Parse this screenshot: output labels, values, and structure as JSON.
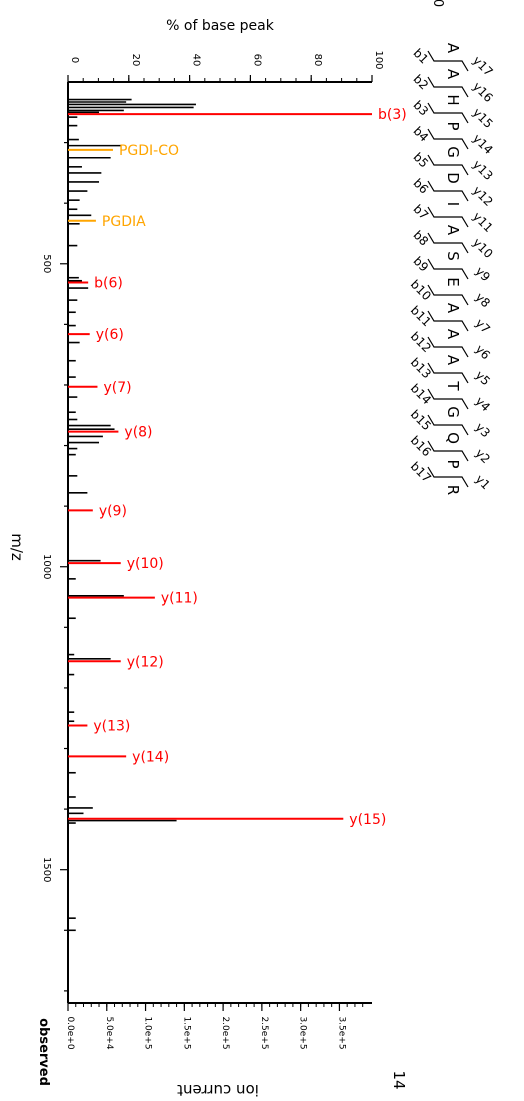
{
  "chart_data": {
    "type": "bar",
    "orientation": "rotated-spectrum",
    "top_axis_label": "% of base peak",
    "top_axis_ticks": [
      "0",
      "20",
      "40",
      "60",
      "80",
      "100"
    ],
    "mz_axis_label": "m/z",
    "mz_ticks": [
      "500",
      "1000",
      "1500"
    ],
    "mz_range": [
      200,
      1720
    ],
    "bottom_axis_label": "ion current",
    "bottom_axis_ticks": [
      "0.0e+0",
      "5.0e+4",
      "1.0e+5",
      "1.5e+5",
      "2.0e+5",
      "2.5e+5",
      "3.0e+5",
      "3.5e+5"
    ],
    "intensity_range": [
      0,
      392000
    ],
    "observed_label": "observed",
    "corner_top_label": "0",
    "corner_bottom_label": "14",
    "colors": {
      "annotated": "#ff0000",
      "neutral_loss": "#ffa500",
      "unannotated": "#000000"
    },
    "peaks": [
      {
        "mz": 229,
        "intensity": 82000,
        "color": "black"
      },
      {
        "mz": 233,
        "intensity": 75000,
        "color": "black"
      },
      {
        "mz": 237,
        "intensity": 165000,
        "color": "black"
      },
      {
        "mz": 242,
        "intensity": 162000,
        "color": "black"
      },
      {
        "mz": 247,
        "intensity": 72000,
        "color": "black"
      },
      {
        "mz": 250,
        "intensity": 40000,
        "color": "black"
      },
      {
        "mz": 253,
        "intensity": 392000,
        "color": "red",
        "label": "b(3)"
      },
      {
        "mz": 258,
        "intensity": 12000,
        "color": "black"
      },
      {
        "mz": 272,
        "intensity": 12000,
        "color": "black"
      },
      {
        "mz": 295,
        "intensity": 14000,
        "color": "black"
      },
      {
        "mz": 305,
        "intensity": 68000,
        "color": "black"
      },
      {
        "mz": 312,
        "intensity": 58000,
        "color": "orange",
        "label": "PGDI-CO"
      },
      {
        "mz": 325,
        "intensity": 55000,
        "color": "black"
      },
      {
        "mz": 340,
        "intensity": 18000,
        "color": "black"
      },
      {
        "mz": 350,
        "intensity": 43000,
        "color": "black"
      },
      {
        "mz": 365,
        "intensity": 40000,
        "color": "black"
      },
      {
        "mz": 380,
        "intensity": 25000,
        "color": "black"
      },
      {
        "mz": 395,
        "intensity": 15000,
        "color": "black"
      },
      {
        "mz": 410,
        "intensity": 12000,
        "color": "black"
      },
      {
        "mz": 420,
        "intensity": 30000,
        "color": "black"
      },
      {
        "mz": 429,
        "intensity": 36000,
        "color": "orange",
        "label": "PGDIA"
      },
      {
        "mz": 434,
        "intensity": 15000,
        "color": "black"
      },
      {
        "mz": 470,
        "intensity": 12000,
        "color": "black"
      },
      {
        "mz": 523,
        "intensity": 14000,
        "color": "black"
      },
      {
        "mz": 528,
        "intensity": 18000,
        "color": "black"
      },
      {
        "mz": 531,
        "intensity": 26000,
        "color": "red",
        "label": "b(6)"
      },
      {
        "mz": 540,
        "intensity": 26000,
        "color": "black"
      },
      {
        "mz": 560,
        "intensity": 12000,
        "color": "black"
      },
      {
        "mz": 580,
        "intensity": 10000,
        "color": "black"
      },
      {
        "mz": 602,
        "intensity": 10000,
        "color": "black"
      },
      {
        "mz": 616,
        "intensity": 28000,
        "color": "red",
        "label": "y(6)"
      },
      {
        "mz": 630,
        "intensity": 15000,
        "color": "black"
      },
      {
        "mz": 660,
        "intensity": 10000,
        "color": "black"
      },
      {
        "mz": 687,
        "intensity": 10000,
        "color": "black"
      },
      {
        "mz": 703,
        "intensity": 38000,
        "color": "red",
        "label": "y(7)"
      },
      {
        "mz": 720,
        "intensity": 12000,
        "color": "black"
      },
      {
        "mz": 745,
        "intensity": 10000,
        "color": "black"
      },
      {
        "mz": 757,
        "intensity": 12000,
        "color": "black"
      },
      {
        "mz": 767,
        "intensity": 55000,
        "color": "black"
      },
      {
        "mz": 773,
        "intensity": 60000,
        "color": "black"
      },
      {
        "mz": 777,
        "intensity": 65000,
        "color": "red",
        "label": "y(8)"
      },
      {
        "mz": 785,
        "intensity": 45000,
        "color": "black"
      },
      {
        "mz": 795,
        "intensity": 40000,
        "color": "black"
      },
      {
        "mz": 805,
        "intensity": 12000,
        "color": "black"
      },
      {
        "mz": 815,
        "intensity": 10000,
        "color": "black"
      },
      {
        "mz": 850,
        "intensity": 12000,
        "color": "black"
      },
      {
        "mz": 878,
        "intensity": 25000,
        "color": "black"
      },
      {
        "mz": 907,
        "intensity": 32000,
        "color": "red",
        "label": "y(9)"
      },
      {
        "mz": 990,
        "intensity": 42000,
        "color": "black"
      },
      {
        "mz": 994,
        "intensity": 68000,
        "color": "red",
        "label": "y(10)"
      },
      {
        "mz": 1020,
        "intensity": 10000,
        "color": "black"
      },
      {
        "mz": 1048,
        "intensity": 72000,
        "color": "black"
      },
      {
        "mz": 1051,
        "intensity": 112000,
        "color": "red",
        "label": "y(11)"
      },
      {
        "mz": 1085,
        "intensity": 10000,
        "color": "black"
      },
      {
        "mz": 1145,
        "intensity": 8000,
        "color": "black"
      },
      {
        "mz": 1152,
        "intensity": 55000,
        "color": "black"
      },
      {
        "mz": 1156,
        "intensity": 68000,
        "color": "red",
        "label": "y(12)"
      },
      {
        "mz": 1178,
        "intensity": 8000,
        "color": "black"
      },
      {
        "mz": 1240,
        "intensity": 8000,
        "color": "black"
      },
      {
        "mz": 1255,
        "intensity": 8000,
        "color": "black"
      },
      {
        "mz": 1262,
        "intensity": 25000,
        "color": "red",
        "label": "y(13)"
      },
      {
        "mz": 1313,
        "intensity": 75000,
        "color": "red",
        "label": "y(14)"
      },
      {
        "mz": 1340,
        "intensity": 10000,
        "color": "black"
      },
      {
        "mz": 1380,
        "intensity": 10000,
        "color": "black"
      },
      {
        "mz": 1398,
        "intensity": 32000,
        "color": "black"
      },
      {
        "mz": 1407,
        "intensity": 20000,
        "color": "black"
      },
      {
        "mz": 1416,
        "intensity": 355000,
        "color": "red",
        "label": "y(15)"
      },
      {
        "mz": 1419,
        "intensity": 140000,
        "color": "black"
      },
      {
        "mz": 1423,
        "intensity": 10000,
        "color": "black"
      },
      {
        "mz": 1580,
        "intensity": 10000,
        "color": "black"
      },
      {
        "mz": 1600,
        "intensity": 10000,
        "color": "black"
      }
    ],
    "sequence": [
      "A",
      "A",
      "H",
      "P",
      "G",
      "D",
      "I",
      "A",
      "S",
      "E",
      "A",
      "A",
      "A",
      "T",
      "G",
      "Q",
      "P",
      "R"
    ],
    "b_ions": [
      "b1",
      "b2",
      "b3",
      "b4",
      "b5",
      "b6",
      "b7",
      "b8",
      "b9",
      "b10",
      "b11",
      "b12",
      "b13",
      "b14",
      "b15",
      "b16",
      "b17"
    ],
    "y_ions": [
      "y17",
      "y16",
      "y15",
      "y14",
      "y13",
      "y12",
      "y11",
      "y10",
      "y9",
      "y8",
      "y7",
      "y6",
      "y5",
      "y4",
      "y3",
      "y2",
      "y1"
    ]
  }
}
